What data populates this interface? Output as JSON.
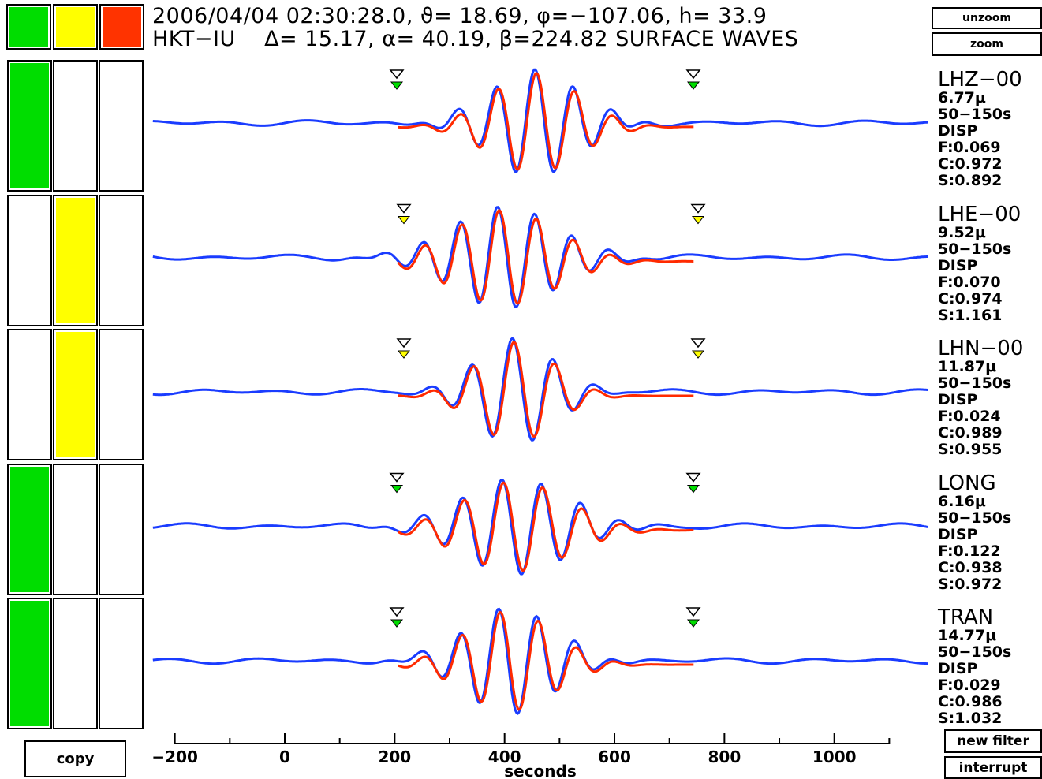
{
  "header": {
    "line1": "2006/04/04 02:30:28.0, ϑ= 18.69, φ=−107.06, h= 33.9",
    "line2": "HKT−IU    Δ= 15.17, α= 40.19, β=224.82 SURFACE WAVES"
  },
  "legend_swatches": [
    {
      "color": "#00dd00"
    },
    {
      "color": "#ffff00"
    },
    {
      "color": "#ff3300"
    }
  ],
  "buttons": {
    "unzoom": "unzoom",
    "zoom": "zoom",
    "copy": "copy",
    "new_filter": "new filter",
    "interrupt": "interrupt"
  },
  "colors": {
    "blue": "#1a3cff",
    "red": "#ff2a00",
    "green": "#00dd00",
    "yellow": "#ffff00"
  },
  "traces": [
    {
      "name": "LHZ−00",
      "amp": "6.77μ",
      "band": "50−150s",
      "type": "DISP",
      "f": "F:0.069",
      "c": "C:0.972",
      "s": "S:0.892",
      "quality": "green",
      "marker": "green",
      "ampScale": 1.0
    },
    {
      "name": "LHE−00",
      "amp": "9.52μ",
      "band": "50−150s",
      "type": "DISP",
      "f": "F:0.070",
      "c": "C:0.974",
      "s": "S:1.161",
      "quality": "yellow",
      "marker": "yellow",
      "ampScale": 0.95
    },
    {
      "name": "LHN−00",
      "amp": "11.87μ",
      "band": "50−150s",
      "type": "DISP",
      "f": "F:0.024",
      "c": "C:0.989",
      "s": "S:0.955",
      "quality": "yellow",
      "marker": "yellow",
      "ampScale": 1.0
    },
    {
      "name": "LONG",
      "amp": "6.16μ",
      "band": "50−150s",
      "type": "DISP",
      "f": "F:0.122",
      "c": "C:0.938",
      "s": "S:0.972",
      "quality": "green",
      "marker": "green",
      "ampScale": 0.9
    },
    {
      "name": "TRAN",
      "amp": "14.77μ",
      "band": "50−150s",
      "type": "DISP",
      "f": "F:0.029",
      "c": "C:0.986",
      "s": "S:1.032",
      "quality": "green",
      "marker": "green",
      "ampScale": 1.0
    }
  ],
  "axis": {
    "xlabel": "seconds",
    "ticks": [
      "−200",
      "0",
      "200",
      "400",
      "600",
      "800",
      "1000"
    ]
  }
}
